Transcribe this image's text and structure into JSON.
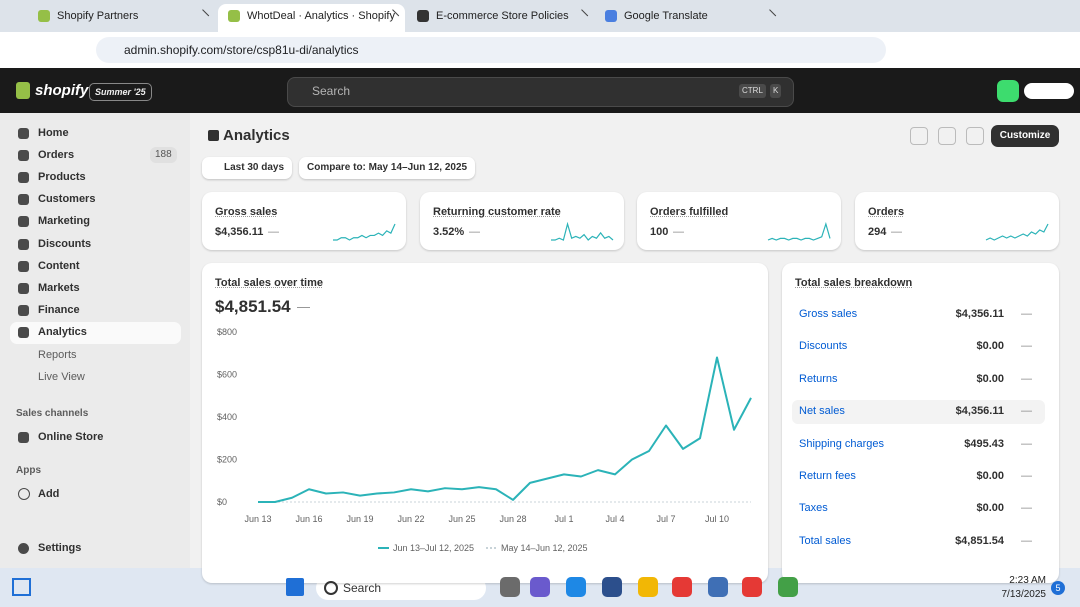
{
  "browser": {
    "tabs": [
      "Shopify Partners",
      "WhotDeal · Analytics · Shopify",
      "E-commerce Store Policies",
      "Google Translate"
    ],
    "url": "admin.shopify.com/store/csp81u-di/analytics"
  },
  "topbar": {
    "brand": "shopify",
    "badge": "Summer '25",
    "search": "Search",
    "shortcut": [
      "CTRL",
      "K"
    ]
  },
  "nav": [
    {
      "label": "Home"
    },
    {
      "label": "Orders",
      "count": 188
    },
    {
      "label": "Products"
    },
    {
      "label": "Customers"
    },
    {
      "label": "Marketing"
    },
    {
      "label": "Discounts"
    },
    {
      "label": "Content"
    },
    {
      "label": "Markets"
    },
    {
      "label": "Finance"
    },
    {
      "label": "Analytics"
    }
  ],
  "subnav": [
    "Reports",
    "Live View"
  ],
  "sales_channels": {
    "title": "Sales channels",
    "items": [
      "Online Store"
    ]
  },
  "apps": {
    "title": "Apps",
    "items": [
      "Add"
    ]
  },
  "settings": "Settings",
  "header": {
    "title": "Analytics",
    "action": "Customize",
    "date_range": "Last 30 days",
    "compare": "Compare to: May 14–Jun 12, 2025"
  },
  "metrics": [
    {
      "label": "Gross sales",
      "value": "$4,356.11",
      "change": "—",
      "trend": [
        1,
        1,
        2,
        2,
        1,
        2,
        2,
        3,
        2,
        3,
        3,
        4,
        3,
        5,
        4,
        8
      ]
    },
    {
      "label": "Returning customer rate",
      "value": "3.52%",
      "change": "—",
      "trend": [
        0,
        0,
        1,
        0,
        9,
        1,
        2,
        1,
        3,
        0,
        2,
        1,
        4,
        1,
        2,
        0
      ]
    },
    {
      "label": "Orders fulfilled",
      "value": "100",
      "change": "—",
      "trend": [
        0,
        1,
        0,
        1,
        1,
        0,
        1,
        1,
        0,
        1,
        1,
        0,
        1,
        2,
        10,
        1
      ]
    },
    {
      "label": "Orders",
      "value": "294",
      "change": "—",
      "trend": [
        1,
        2,
        1,
        2,
        3,
        2,
        3,
        2,
        3,
        4,
        3,
        5,
        4,
        6,
        5,
        9
      ]
    }
  ],
  "chart_data": {
    "type": "line",
    "title": "Total sales over time",
    "total": "$4,851.54",
    "change": "—",
    "categories": [
      "Jun 13",
      null,
      null,
      "Jun 16",
      null,
      null,
      "Jun 19",
      null,
      null,
      "Jun 22",
      null,
      null,
      "Jun 25",
      null,
      null,
      "Jun 28",
      null,
      null,
      "Jul 1",
      null,
      null,
      "Jul 4",
      null,
      null,
      "Jul 7",
      null,
      null,
      "Jul 10",
      null,
      null
    ],
    "series": [
      {
        "name": "Jun 13–Jul 12, 2025",
        "color": "#2bb3b8",
        "values": [
          0,
          0,
          20,
          60,
          40,
          45,
          30,
          40,
          45,
          60,
          50,
          65,
          60,
          70,
          60,
          10,
          90,
          110,
          130,
          120,
          150,
          130,
          200,
          240,
          360,
          250,
          300,
          680,
          340,
          490
        ]
      },
      {
        "name": "May 14–Jun 12, 2025",
        "color": "#c8d3d8",
        "dashed": true,
        "values": [
          0,
          0,
          0,
          0,
          0,
          0,
          0,
          0,
          0,
          0,
          0,
          0,
          0,
          0,
          0,
          0,
          0,
          0,
          0,
          0,
          0,
          0,
          0,
          0,
          0,
          0,
          0,
          0,
          0,
          0
        ]
      }
    ],
    "ylim": [
      0,
      800
    ],
    "yticks": [
      {
        "value": 0,
        "label": "$0"
      },
      {
        "value": 200,
        "label": "$200"
      },
      {
        "value": 400,
        "label": "$400"
      },
      {
        "value": 600,
        "label": "$600"
      },
      {
        "value": 800,
        "label": "$800"
      }
    ]
  },
  "breakdown": {
    "title": "Total sales breakdown",
    "rows": [
      {
        "label": "Gross sales",
        "value": "$4,356.11",
        "change": "—"
      },
      {
        "label": "Discounts",
        "value": "$0.00",
        "change": "—"
      },
      {
        "label": "Returns",
        "value": "$0.00",
        "change": "—"
      },
      {
        "label": "Net sales",
        "value": "$4,356.11",
        "change": "—"
      },
      {
        "label": "Shipping charges",
        "value": "$495.43",
        "change": "—"
      },
      {
        "label": "Return fees",
        "value": "$0.00",
        "change": "—"
      },
      {
        "label": "Taxes",
        "value": "$0.00",
        "change": "—"
      },
      {
        "label": "Total sales",
        "value": "$4,851.54",
        "change": "—"
      }
    ]
  },
  "taskbar": {
    "search": "Search",
    "time": "2:23 AM",
    "date": "7/13/2025",
    "notifications": 5
  }
}
